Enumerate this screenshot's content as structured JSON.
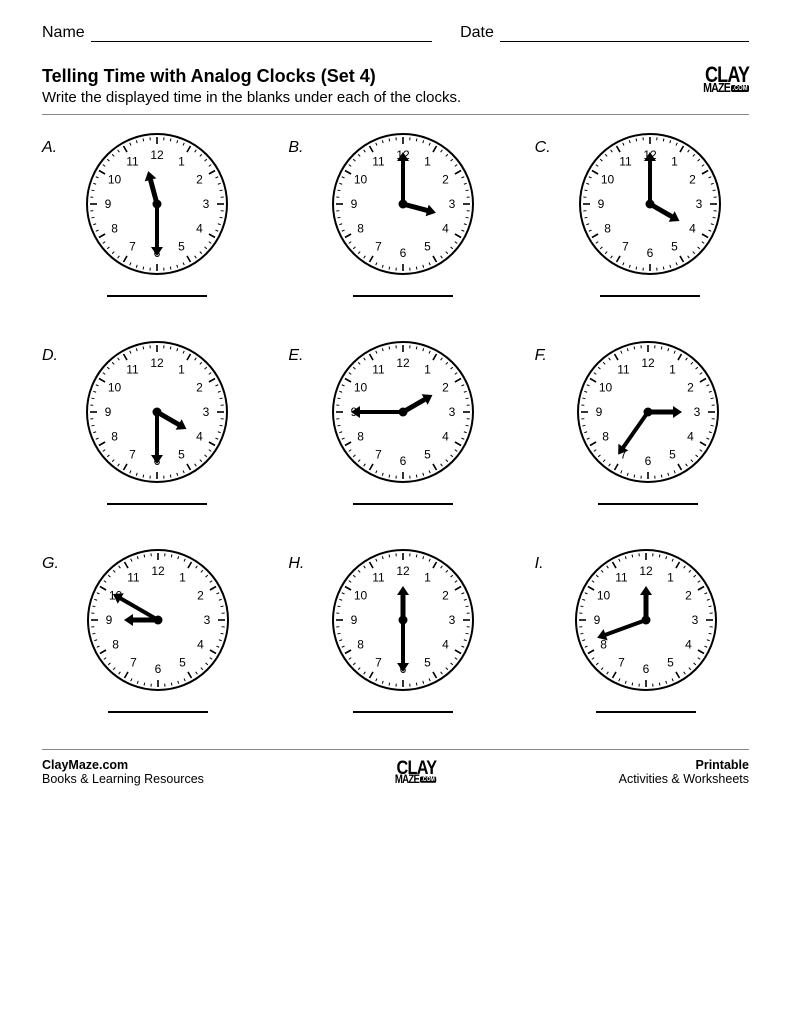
{
  "header": {
    "name_label": "Name",
    "date_label": "Date"
  },
  "title": "Telling Time with Analog Clocks (Set 4)",
  "instructions": "Write the displayed time in the blanks under each of the clocks.",
  "logo": {
    "line1": "CLAY",
    "line2": "MAZE",
    "suffix": ".COM"
  },
  "clock_style": {
    "diameter": 142,
    "face_stroke": "#000000",
    "face_fill": "#ffffff",
    "hour_hand_len": 34,
    "minute_hand_len": 52,
    "hand_stroke": "#000000",
    "number_font_size": 12
  },
  "clocks": [
    {
      "label": "A.",
      "hour_angle": 345,
      "minute_angle": 180
    },
    {
      "label": "B.",
      "hour_angle": 105,
      "minute_angle": 0
    },
    {
      "label": "C.",
      "hour_angle": 120,
      "minute_angle": 0
    },
    {
      "label": "D.",
      "hour_angle": 120,
      "minute_angle": 180
    },
    {
      "label": "E.",
      "hour_angle": 60,
      "minute_angle": 270
    },
    {
      "label": "F.",
      "hour_angle": 90,
      "minute_angle": 215
    },
    {
      "label": "G.",
      "hour_angle": 270,
      "minute_angle": 300
    },
    {
      "label": "H.",
      "hour_angle": 0,
      "minute_angle": 180
    },
    {
      "label": "I.",
      "hour_angle": 0,
      "minute_angle": 250
    }
  ],
  "footer": {
    "left1": "ClayMaze.com",
    "left2": "Books & Learning Resources",
    "right1": "Printable",
    "right2": "Activities & Worksheets"
  }
}
